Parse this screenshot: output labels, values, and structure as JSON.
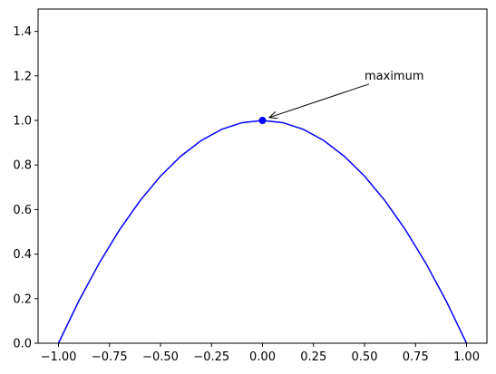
{
  "chart_data": {
    "type": "line",
    "x": [
      -1,
      -0.9,
      -0.8,
      -0.7,
      -0.6,
      -0.5,
      -0.4,
      -0.3,
      -0.2,
      -0.1,
      0,
      0.1,
      0.2,
      0.3,
      0.4,
      0.5,
      0.6,
      0.7,
      0.8,
      0.9,
      1
    ],
    "values": [
      0,
      0.19,
      0.36,
      0.51,
      0.64,
      0.75,
      0.84,
      0.91,
      0.96,
      0.99,
      1,
      0.99,
      0.96,
      0.91,
      0.84,
      0.75,
      0.64,
      0.51,
      0.36,
      0.19,
      0
    ],
    "color": "blue",
    "marker": {
      "x": 0,
      "y": 1,
      "color": "blue"
    },
    "annotation": {
      "text": "maximum",
      "xy": [
        0,
        1
      ],
      "xytext": [
        0.5,
        1.2
      ]
    },
    "xlim": [
      -1.1,
      1.1
    ],
    "ylim": [
      0,
      1.5
    ],
    "xticks": [
      {
        "value": -1,
        "label": "−1.00"
      },
      {
        "value": -0.75,
        "label": "−0.75"
      },
      {
        "value": -0.5,
        "label": "−0.50"
      },
      {
        "value": -0.25,
        "label": "−0.25"
      },
      {
        "value": 0,
        "label": "0.00"
      },
      {
        "value": 0.25,
        "label": "0.25"
      },
      {
        "value": 0.5,
        "label": "0.50"
      },
      {
        "value": 0.75,
        "label": "0.75"
      },
      {
        "value": 1,
        "label": "1.00"
      }
    ],
    "yticks": [
      {
        "value": 0,
        "label": "0.0"
      },
      {
        "value": 0.2,
        "label": "0.2"
      },
      {
        "value": 0.4,
        "label": "0.4"
      },
      {
        "value": 0.6,
        "label": "0.6"
      },
      {
        "value": 0.8,
        "label": "0.8"
      },
      {
        "value": 1,
        "label": "1.0"
      },
      {
        "value": 1.2,
        "label": "1.2"
      },
      {
        "value": 1.4,
        "label": "1.4"
      }
    ]
  }
}
